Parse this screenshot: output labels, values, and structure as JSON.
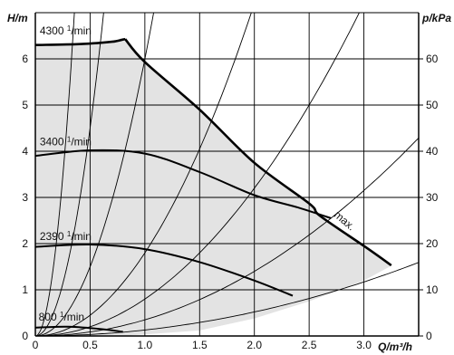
{
  "chart_data": {
    "type": "line",
    "xlabel": "Q/m³/h",
    "ylabel_left": "H/m",
    "ylabel_right": "p/kPa",
    "xlim": [
      0,
      3.5
    ],
    "ylim_left": [
      0,
      7
    ],
    "ylim_right": [
      0,
      70
    ],
    "x_ticks": [
      0,
      0.5,
      1.0,
      1.5,
      2.0,
      2.5,
      3.0
    ],
    "x_tick_labels": [
      "0",
      "0.5",
      "1.0",
      "1.5",
      "2.0",
      "2.5",
      "3.0"
    ],
    "y_left_ticks": [
      0,
      1,
      2,
      3,
      4,
      5,
      6
    ],
    "y_left_tick_labels": [
      "0",
      "1",
      "2",
      "3",
      "4",
      "5",
      "6"
    ],
    "y_right_ticks": [
      0,
      10,
      20,
      30,
      40,
      50,
      60
    ],
    "y_right_tick_labels": [
      "0",
      "10",
      "20",
      "30",
      "40",
      "50",
      "60"
    ],
    "grid": true,
    "colors": {
      "line": "#000000",
      "operating_region": "#e3e3e3",
      "grid": "#000000"
    },
    "speed_curves": [
      {
        "label_value": "4300",
        "label_unit": "min",
        "points": [
          [
            0,
            6.3
          ],
          [
            0.4,
            6.32
          ],
          [
            0.7,
            6.37
          ],
          [
            0.82,
            6.43
          ]
        ]
      },
      {
        "label_value": "3400",
        "label_unit": "min",
        "points": [
          [
            0,
            3.9
          ],
          [
            0.5,
            4.02
          ],
          [
            1.0,
            3.95
          ],
          [
            1.5,
            3.55
          ],
          [
            2.0,
            3.05
          ],
          [
            2.4,
            2.78
          ],
          [
            2.7,
            2.55
          ]
        ]
      },
      {
        "label_value": "2390",
        "label_unit": "min",
        "points": [
          [
            0,
            1.93
          ],
          [
            0.5,
            1.98
          ],
          [
            1.0,
            1.88
          ],
          [
            1.5,
            1.6
          ],
          [
            2.0,
            1.2
          ],
          [
            2.35,
            0.87
          ]
        ]
      },
      {
        "label_value": "800",
        "label_unit": "min",
        "points": [
          [
            0,
            0.18
          ],
          [
            0.3,
            0.2
          ],
          [
            0.6,
            0.15
          ],
          [
            0.8,
            0.09
          ]
        ]
      }
    ],
    "max_curve": {
      "label": "max.",
      "points": [
        [
          0.82,
          6.43
        ],
        [
          1.0,
          5.93
        ],
        [
          1.5,
          4.9
        ],
        [
          2.0,
          3.75
        ],
        [
          2.5,
          2.87
        ],
        [
          2.6,
          2.6
        ],
        [
          3.0,
          1.95
        ],
        [
          3.25,
          1.53
        ]
      ]
    },
    "operating_region_bottom": [
      [
        0.8,
        0.0
      ],
      [
        1.5,
        0.12
      ],
      [
        2.0,
        0.38
      ],
      [
        2.5,
        0.75
      ],
      [
        3.0,
        1.2
      ],
      [
        3.25,
        1.52
      ]
    ],
    "system_curves": [
      {
        "k": 55
      },
      {
        "k": 18
      },
      {
        "k": 6
      },
      {
        "k": 1.8
      },
      {
        "k": 0.8
      },
      {
        "k": 0.35
      },
      {
        "k": 0.13
      }
    ]
  }
}
